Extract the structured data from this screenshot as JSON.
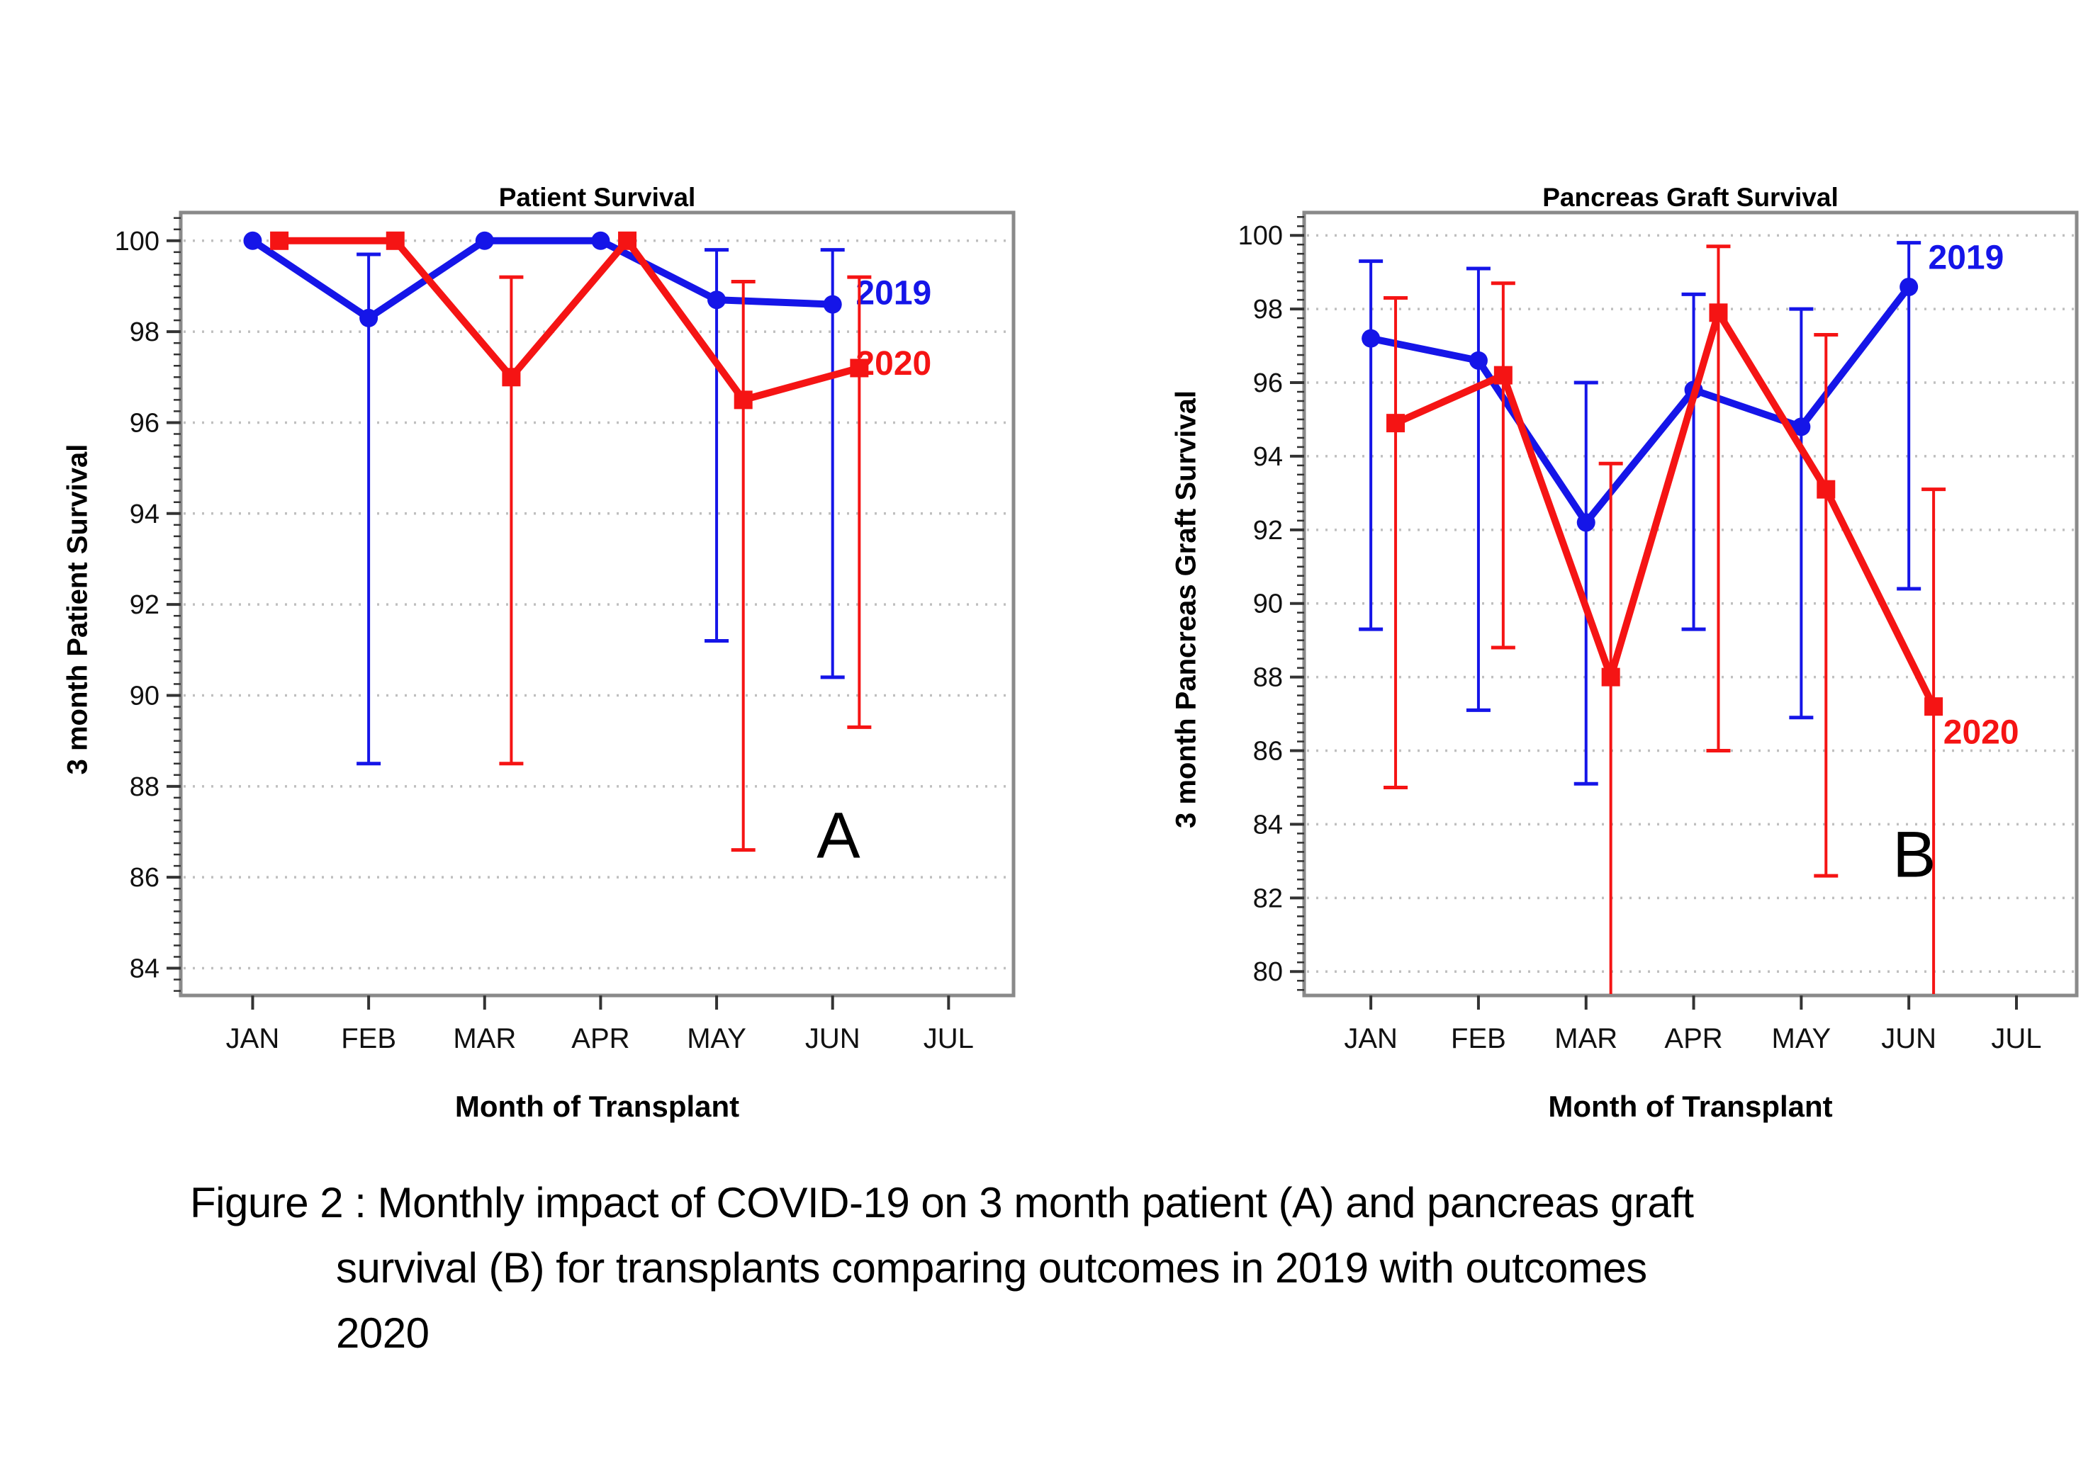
{
  "caption": {
    "line1": "Figure 2 : Monthly impact of COVID-19 on 3 month patient (A) and pancreas graft",
    "line2": "survival (B) for transplants comparing outcomes in 2019 with outcomes",
    "line3": "2020"
  },
  "colors": {
    "blue": "#1515e8",
    "red": "#f51414",
    "grid": "#bfbfbf",
    "frame": "#8a8a8a",
    "tick": "#333333",
    "text": "#000000"
  },
  "chart_data": [
    {
      "id": "A",
      "type": "line",
      "title": "Patient Survival",
      "xlabel": "Month of Transplant",
      "ylabel": "3 month Patient Survival",
      "corner_label": "A",
      "corner_pos": {
        "x": 6.05,
        "y": 86.9
      },
      "ylim": [
        83.4,
        100.62
      ],
      "yticks": [
        84,
        86,
        88,
        90,
        92,
        94,
        96,
        98,
        100
      ],
      "categories": [
        "JAN",
        "FEB",
        "MAR",
        "APR",
        "MAY",
        "JUN",
        "JUL"
      ],
      "x_months": [
        1,
        2,
        3,
        4,
        5,
        6
      ],
      "grid": true,
      "legend_position": "end-of-line-labels",
      "series": [
        {
          "name": "2019",
          "color_key": "blue",
          "marker": "circle",
          "x_offset": 0,
          "values": [
            100,
            98.3,
            100,
            100,
            98.7,
            98.6
          ],
          "err_lo": [
            null,
            88.5,
            null,
            null,
            91.2,
            90.4
          ],
          "err_hi": [
            null,
            99.7,
            null,
            null,
            99.8,
            99.8
          ],
          "label": {
            "text": "2019",
            "x": 6.2,
            "y": 98.85
          }
        },
        {
          "name": "2020",
          "color_key": "red",
          "marker": "square",
          "x_offset": 0.23,
          "values": [
            100,
            100,
            97.0,
            100,
            96.5,
            97.2
          ],
          "err_lo": [
            null,
            null,
            88.5,
            null,
            86.6,
            89.3
          ],
          "err_hi": [
            null,
            null,
            99.2,
            null,
            99.1,
            99.2
          ],
          "label": {
            "text": "2020",
            "x": 6.2,
            "y": 97.3
          }
        }
      ]
    },
    {
      "id": "B",
      "type": "line",
      "title": "Pancreas Graft Survival",
      "xlabel": "Month of Transplant",
      "ylabel": "3 month Pancreas Graft Survival",
      "corner_label": "B",
      "corner_pos": {
        "x": 6.05,
        "y": 83.15
      },
      "ylim": [
        79.35,
        100.62
      ],
      "yticks": [
        80,
        82,
        84,
        86,
        88,
        90,
        92,
        94,
        96,
        98,
        100
      ],
      "categories": [
        "JAN",
        "FEB",
        "MAR",
        "APR",
        "MAY",
        "JUN",
        "JUL"
      ],
      "x_months": [
        1,
        2,
        3,
        4,
        5,
        6
      ],
      "grid": true,
      "legend_position": "end-of-line-labels",
      "series": [
        {
          "name": "2019",
          "color_key": "blue",
          "marker": "circle",
          "x_offset": 0,
          "values": [
            97.2,
            96.6,
            92.2,
            95.8,
            94.8,
            98.6
          ],
          "err_lo": [
            89.3,
            87.1,
            85.1,
            89.3,
            86.9,
            90.4
          ],
          "err_hi": [
            99.3,
            99.1,
            96.0,
            98.4,
            98.0,
            99.8
          ],
          "label": {
            "text": "2019",
            "x": 6.18,
            "y": 99.4
          }
        },
        {
          "name": "2020",
          "color_key": "red",
          "marker": "square",
          "x_offset": 0.23,
          "values": [
            94.9,
            96.2,
            88.0,
            97.9,
            93.1,
            87.2
          ],
          "err_lo": [
            85.0,
            88.8,
            "clip",
            86.0,
            82.6,
            "clip"
          ],
          "err_hi": [
            98.3,
            98.7,
            93.8,
            99.7,
            97.3,
            93.1
          ],
          "label": {
            "text": "2020",
            "x": 6.32,
            "y": 86.5
          }
        }
      ]
    }
  ]
}
